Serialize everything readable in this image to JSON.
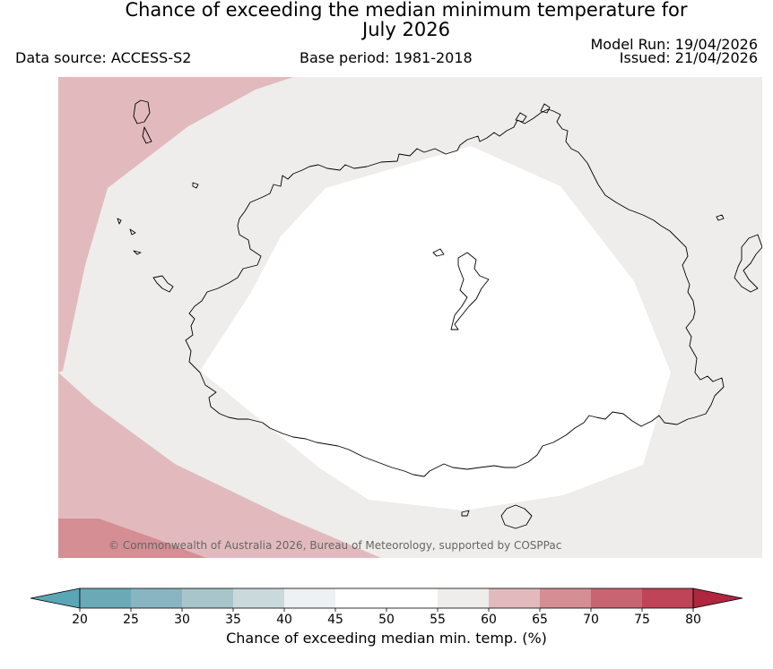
{
  "header": {
    "title_line1": "Chance of exceeding the median minimum temperature for",
    "title_line2": "July 2026",
    "data_source": "Data source: ACCESS-S2",
    "base_period": "Base period: 1981-2018",
    "model_run": "Model Run: 19/04/2026",
    "issued": "Issued: 21/04/2026"
  },
  "map": {
    "copyright": "© Commonwealth of Australia 2026, Bureau of Meteorology, supported by COSPPac",
    "colors": {
      "ocean_neutral": "#eeedeb",
      "inner_white": "#ffffff",
      "band_60_65": "#e2babd",
      "band_65_70": "#d48e94",
      "coast": "#000000"
    }
  },
  "colorbar": {
    "label": "Chance of exceeding median min. temp. (%)",
    "ticks": [
      "20",
      "25",
      "30",
      "35",
      "40",
      "45",
      "50",
      "55",
      "60",
      "65",
      "70",
      "75",
      "80"
    ],
    "under_color": "#5aa6b5",
    "over_color": "#b0263f",
    "colors": [
      "#6aaab7",
      "#88b5c1",
      "#a7c5cb",
      "#cad9db",
      "#edf1f4",
      "#ffffff",
      "#ffffff",
      "#eeedeb",
      "#e2babd",
      "#d48e94",
      "#c96571",
      "#be4456"
    ]
  }
}
